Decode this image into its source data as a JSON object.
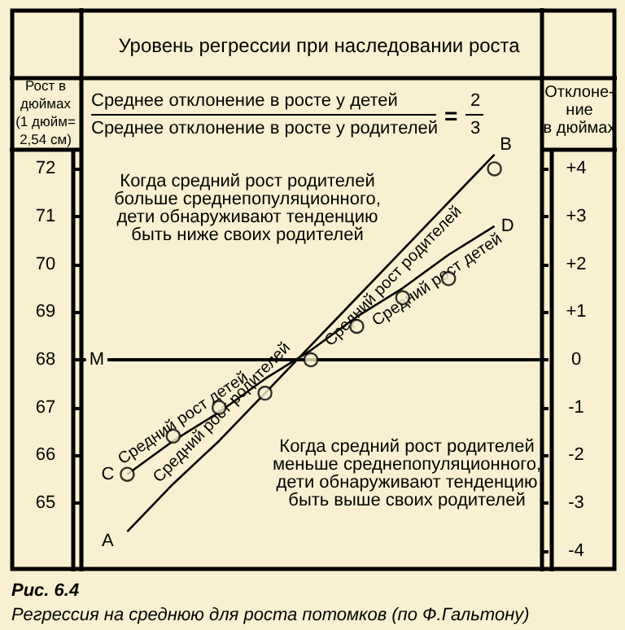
{
  "chart_data": {
    "type": "line",
    "title": "Уровень регрессии при наследовании роста",
    "ylabel": "Рост в\nдюймах\n(1 дюйм=\n2,54 см)",
    "y2label": "Отклоне-\nние\nв дюймах",
    "categories": [
      null,
      null,
      null,
      null,
      null,
      null,
      null,
      null,
      null
    ],
    "series": [
      {
        "name": "Средний рост родителей",
        "color": "#000000",
        "marker": "none",
        "line_style": "solid",
        "values": [
          64.4,
          65.4,
          66.3,
          67.3,
          68.3,
          69.3,
          70.3,
          71.3,
          72.3
        ]
      },
      {
        "name": "Средний рост детей",
        "color": "#000000",
        "marker": "none",
        "line_style": "solid",
        "values": [
          65.6,
          66.3,
          66.9,
          67.6,
          68.2,
          68.9,
          69.5,
          70.2,
          70.8
        ]
      },
      {
        "type": "scatter",
        "color": "#000000",
        "marker": "circle",
        "values": [
          65.6,
          66.4,
          67.0,
          67.3,
          68.0,
          68.7,
          69.3,
          69.7,
          72.0
        ]
      }
    ],
    "ylim": [
      63.6,
      72.4
    ],
    "yticks": [
      65,
      66,
      67,
      68,
      69,
      70,
      71,
      72
    ],
    "y2lim": [
      -4.4,
      4.4
    ],
    "y2ticks": [
      {
        "value": 4,
        "label": "+4"
      },
      {
        "value": 3,
        "label": "+3"
      },
      {
        "value": 2,
        "label": "+2"
      },
      {
        "value": 1,
        "label": "+1"
      },
      0,
      -1,
      -2,
      -3,
      -4
    ],
    "ref_lines": [
      {
        "axis": "y",
        "value": 68,
        "label": "M",
        "color": "#000000"
      }
    ],
    "annotations": [
      "Среднее отклонение в росте у детей",
      "Среднее отклонение в росте у родителей",
      "=",
      "2",
      "3",
      "Когда средний рост родителей\nбольше среднепопуляционного,\nдети обнаруживают тенденцию\nбыть ниже своих родителей",
      "Когда средний рост родителей\nменьше среднепопуляционного,\nдети обнаруживают тенденцию\nбыть выше своих родителей",
      "A",
      "B",
      "C",
      "D",
      "Рис. 6.4",
      "Регрессия на среднюю для роста потомков (по Ф.Гальтону)"
    ],
    "grid": false,
    "legend": false
  }
}
